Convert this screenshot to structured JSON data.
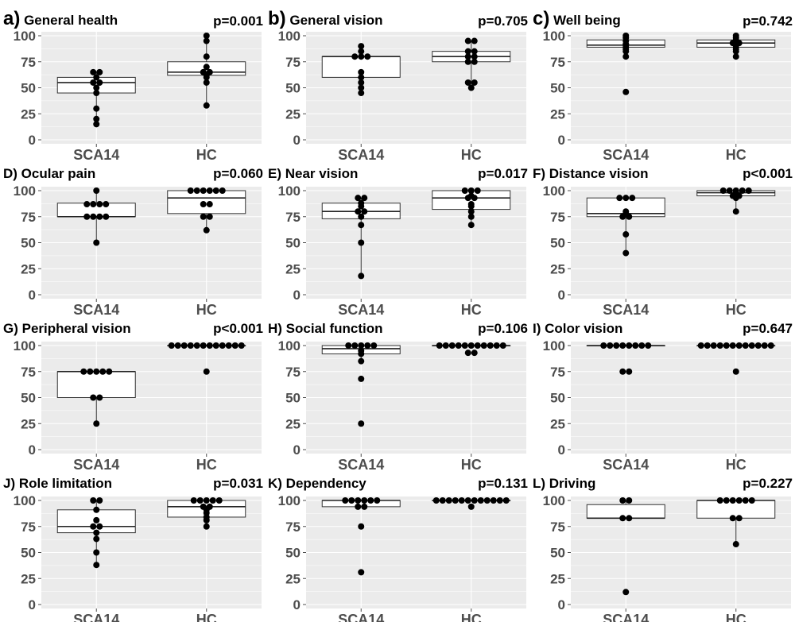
{
  "chart_data": [
    {
      "type": "box",
      "letter": "a)",
      "title": "General health",
      "pvalue": "p=0.001",
      "categories": [
        "SCA14",
        "HC"
      ],
      "ylim": [
        0,
        100
      ],
      "yticks": [
        "0",
        "25",
        "50",
        "75",
        "100"
      ],
      "boxes": [
        {
          "q1": 45,
          "median": 55,
          "q3": 60,
          "min": 15,
          "max": 65
        },
        {
          "q1": 62,
          "median": 65,
          "q3": 75,
          "min": 33,
          "max": 100
        }
      ],
      "points": [
        [
          15,
          20,
          30,
          45,
          50,
          55,
          55,
          60,
          65,
          65
        ],
        [
          33,
          55,
          60,
          62,
          65,
          65,
          70,
          80,
          95,
          100
        ]
      ]
    },
    {
      "type": "box",
      "letter": "b)",
      "title": "General vision",
      "pvalue": "p=0.705",
      "categories": [
        "SCA14",
        "HC"
      ],
      "ylim": [
        0,
        100
      ],
      "yticks": [
        "0",
        "25",
        "50",
        "75",
        "100"
      ],
      "boxes": [
        {
          "q1": 60,
          "median": 80,
          "q3": 80,
          "min": 45,
          "max": 90
        },
        {
          "q1": 75,
          "median": 80,
          "q3": 85,
          "min": 50,
          "max": 95
        }
      ],
      "points": [
        [
          45,
          50,
          55,
          60,
          65,
          80,
          80,
          80,
          85,
          90
        ],
        [
          50,
          55,
          55,
          75,
          75,
          80,
          80,
          85,
          85,
          95,
          95
        ]
      ]
    },
    {
      "type": "box",
      "letter": "c)",
      "title": "Well being",
      "pvalue": "p=0.742",
      "categories": [
        "SCA14",
        "HC"
      ],
      "ylim": [
        0,
        100
      ],
      "yticks": [
        "0",
        "25",
        "50",
        "75",
        "100"
      ],
      "boxes": [
        {
          "q1": 89,
          "median": 91,
          "q3": 96,
          "min": 79,
          "max": 100
        },
        {
          "q1": 89,
          "median": 93,
          "q3": 96,
          "min": 80,
          "max": 100
        }
      ],
      "points": [
        [
          46,
          80,
          85,
          87,
          89,
          91,
          92,
          95,
          98,
          100
        ],
        [
          80,
          85,
          87,
          89,
          91,
          93,
          93,
          95,
          96,
          98,
          100
        ]
      ]
    },
    {
      "type": "box",
      "letter": "D)",
      "title": "Ocular pain",
      "pvalue": "p=0.060",
      "categories": [
        "SCA14",
        "HC"
      ],
      "ylim": [
        0,
        100
      ],
      "yticks": [
        "0",
        "25",
        "50",
        "75",
        "100"
      ],
      "boxes": [
        {
          "q1": 75,
          "median": 75,
          "q3": 88,
          "min": 50,
          "max": 100
        },
        {
          "q1": 78,
          "median": 93,
          "q3": 100,
          "min": 62,
          "max": 100
        }
      ],
      "points": [
        [
          50,
          75,
          75,
          75,
          75,
          87,
          87,
          87,
          87,
          100
        ],
        [
          62,
          75,
          75,
          87,
          87,
          100,
          100,
          100,
          100,
          100,
          100
        ]
      ]
    },
    {
      "type": "box",
      "letter": "E)",
      "title": "Near vision",
      "pvalue": "p=0.017",
      "categories": [
        "SCA14",
        "HC"
      ],
      "ylim": [
        0,
        100
      ],
      "yticks": [
        "0",
        "25",
        "50",
        "75",
        "100"
      ],
      "boxes": [
        {
          "q1": 73,
          "median": 80,
          "q3": 88,
          "min": 18,
          "max": 93
        },
        {
          "q1": 82,
          "median": 93,
          "q3": 100,
          "min": 67,
          "max": 100
        }
      ],
      "points": [
        [
          18,
          50,
          67,
          75,
          80,
          80,
          85,
          88,
          93,
          93
        ],
        [
          67,
          75,
          80,
          85,
          87,
          93,
          93,
          95,
          100,
          100,
          100
        ]
      ]
    },
    {
      "type": "box",
      "letter": "F)",
      "title": "Distance vision",
      "pvalue": "p<0.001",
      "categories": [
        "SCA14",
        "HC"
      ],
      "ylim": [
        0,
        100
      ],
      "yticks": [
        "0",
        "25",
        "50",
        "75",
        "100"
      ],
      "boxes": [
        {
          "q1": 75,
          "median": 78,
          "q3": 93,
          "min": 40,
          "max": 93
        },
        {
          "q1": 95,
          "median": 98,
          "q3": 100,
          "min": 80,
          "max": 100
        }
      ],
      "points": [
        [
          40,
          58,
          75,
          75,
          78,
          80,
          93,
          93,
          93
        ],
        [
          80,
          93,
          95,
          95,
          97,
          98,
          100,
          100,
          100,
          100,
          100
        ]
      ]
    },
    {
      "type": "box",
      "letter": "G)",
      "title": "Peripheral vision",
      "pvalue": "p<0.001",
      "categories": [
        "SCA14",
        "HC"
      ],
      "ylim": [
        0,
        100
      ],
      "yticks": [
        "0",
        "25",
        "50",
        "75",
        "100"
      ],
      "boxes": [
        {
          "q1": 50,
          "median": 75,
          "q3": 75,
          "min": 25,
          "max": 75
        },
        {
          "q1": 100,
          "median": 100,
          "q3": 100,
          "min": 100,
          "max": 100
        }
      ],
      "points": [
        [
          25,
          50,
          50,
          75,
          75,
          75,
          75,
          75
        ],
        [
          75,
          100,
          100,
          100,
          100,
          100,
          100,
          100,
          100,
          100,
          100,
          100,
          100
        ]
      ]
    },
    {
      "type": "box",
      "letter": "H)",
      "title": "Social function",
      "pvalue": "p=0.106",
      "categories": [
        "SCA14",
        "HC"
      ],
      "ylim": [
        0,
        100
      ],
      "yticks": [
        "0",
        "25",
        "50",
        "75",
        "100"
      ],
      "boxes": [
        {
          "q1": 92,
          "median": 97,
          "q3": 100,
          "min": 85,
          "max": 100
        },
        {
          "q1": 100,
          "median": 100,
          "q3": 100,
          "min": 100,
          "max": 100
        }
      ],
      "points": [
        [
          25,
          68,
          85,
          92,
          95,
          100,
          100,
          100,
          100,
          100
        ],
        [
          93,
          93,
          100,
          100,
          100,
          100,
          100,
          100,
          100,
          100,
          100,
          100,
          100
        ]
      ]
    },
    {
      "type": "box",
      "letter": "I)",
      "title": "Color vision",
      "pvalue": "p=0.647",
      "categories": [
        "SCA14",
        "HC"
      ],
      "ylim": [
        0,
        100
      ],
      "yticks": [
        "0",
        "25",
        "50",
        "75",
        "100"
      ],
      "boxes": [
        {
          "q1": 100,
          "median": 100,
          "q3": 100,
          "min": 100,
          "max": 100
        },
        {
          "q1": 100,
          "median": 100,
          "q3": 100,
          "min": 100,
          "max": 100
        }
      ],
      "points": [
        [
          75,
          75,
          100,
          100,
          100,
          100,
          100,
          100,
          100,
          100
        ],
        [
          75,
          100,
          100,
          100,
          100,
          100,
          100,
          100,
          100,
          100,
          100,
          100,
          100
        ]
      ]
    },
    {
      "type": "box",
      "letter": "J)",
      "title": "Role limitation",
      "pvalue": "p=0.031",
      "categories": [
        "SCA14",
        "HC"
      ],
      "ylim": [
        0,
        100
      ],
      "yticks": [
        "0",
        "25",
        "50",
        "75",
        "100"
      ],
      "boxes": [
        {
          "q1": 69,
          "median": 75,
          "q3": 91,
          "min": 38,
          "max": 100
        },
        {
          "q1": 84,
          "median": 94,
          "q3": 100,
          "min": 75,
          "max": 100
        }
      ],
      "points": [
        [
          38,
          50,
          63,
          69,
          75,
          75,
          81,
          91,
          100,
          100
        ],
        [
          75,
          81,
          84,
          88,
          91,
          94,
          94,
          100,
          100,
          100,
          100,
          100
        ]
      ]
    },
    {
      "type": "box",
      "letter": "K)",
      "title": "Dependency",
      "pvalue": "p=0.131",
      "categories": [
        "SCA14",
        "HC"
      ],
      "ylim": [
        0,
        100
      ],
      "yticks": [
        "0",
        "25",
        "50",
        "75",
        "100"
      ],
      "boxes": [
        {
          "q1": 94,
          "median": 100,
          "q3": 100,
          "min": 94,
          "max": 100
        },
        {
          "q1": 100,
          "median": 100,
          "q3": 100,
          "min": 100,
          "max": 100
        }
      ],
      "points": [
        [
          31,
          75,
          94,
          94,
          100,
          100,
          100,
          100,
          100,
          100
        ],
        [
          94,
          100,
          100,
          100,
          100,
          100,
          100,
          100,
          100,
          100,
          100,
          100,
          100
        ]
      ]
    },
    {
      "type": "box",
      "letter": "L)",
      "title": "Driving",
      "pvalue": "p=0.227",
      "categories": [
        "SCA14",
        "HC"
      ],
      "ylim": [
        0,
        100
      ],
      "yticks": [
        "0",
        "25",
        "50",
        "75",
        "100"
      ],
      "boxes": [
        {
          "q1": 83,
          "median": 83,
          "q3": 96,
          "min": 83,
          "max": 100
        },
        {
          "q1": 83,
          "median": 100,
          "q3": 100,
          "min": 58,
          "max": 100
        }
      ],
      "points": [
        [
          12,
          83,
          83,
          100,
          100
        ],
        [
          58,
          83,
          83,
          100,
          100,
          100,
          100,
          100,
          100
        ]
      ]
    }
  ]
}
